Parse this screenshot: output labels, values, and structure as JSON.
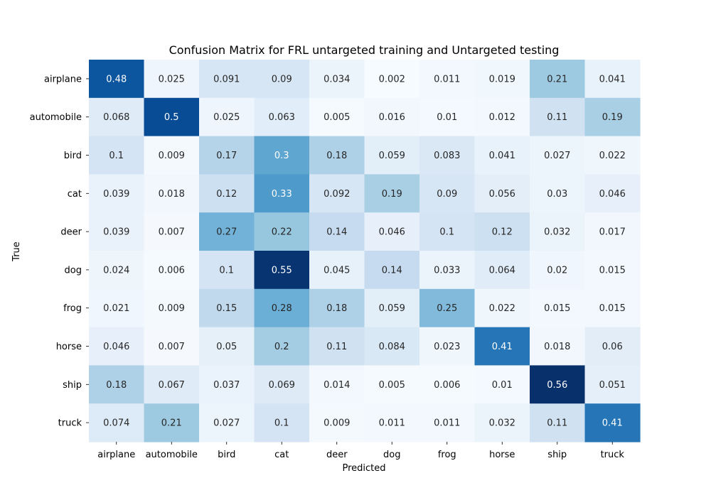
{
  "chart_data": {
    "type": "heatmap",
    "title": "Confusion Matrix for FRL untargeted training and Untargeted testing",
    "xlabel": "Predicted",
    "ylabel": "True",
    "x_categories": [
      "airplane",
      "automobile",
      "bird",
      "cat",
      "deer",
      "dog",
      "frog",
      "horse",
      "ship",
      "truck"
    ],
    "y_categories": [
      "airplane",
      "automobile",
      "bird",
      "cat",
      "deer",
      "dog",
      "frog",
      "horse",
      "ship",
      "truck"
    ],
    "values": [
      [
        "0.48",
        "0.025",
        "0.091",
        "0.09",
        "0.034",
        "0.002",
        "0.011",
        "0.019",
        "0.21",
        "0.041"
      ],
      [
        "0.068",
        "0.5",
        "0.025",
        "0.063",
        "0.005",
        "0.016",
        "0.01",
        "0.012",
        "0.11",
        "0.19"
      ],
      [
        "0.1",
        "0.009",
        "0.17",
        "0.3",
        "0.18",
        "0.059",
        "0.083",
        "0.041",
        "0.027",
        "0.022"
      ],
      [
        "0.039",
        "0.018",
        "0.12",
        "0.33",
        "0.092",
        "0.19",
        "0.09",
        "0.056",
        "0.03",
        "0.046"
      ],
      [
        "0.039",
        "0.007",
        "0.27",
        "0.22",
        "0.14",
        "0.046",
        "0.1",
        "0.12",
        "0.032",
        "0.017"
      ],
      [
        "0.024",
        "0.006",
        "0.1",
        "0.55",
        "0.045",
        "0.14",
        "0.033",
        "0.064",
        "0.02",
        "0.015"
      ],
      [
        "0.021",
        "0.009",
        "0.15",
        "0.28",
        "0.18",
        "0.059",
        "0.25",
        "0.022",
        "0.015",
        "0.015"
      ],
      [
        "0.046",
        "0.007",
        "0.05",
        "0.2",
        "0.11",
        "0.084",
        "0.023",
        "0.41",
        "0.018",
        "0.06"
      ],
      [
        "0.18",
        "0.067",
        "0.037",
        "0.069",
        "0.014",
        "0.005",
        "0.006",
        "0.01",
        "0.56",
        "0.051"
      ],
      [
        "0.074",
        "0.21",
        "0.027",
        "0.1",
        "0.009",
        "0.011",
        "0.011",
        "0.032",
        "0.11",
        "0.41"
      ]
    ],
    "colormap": "Blues",
    "color_range": [
      0,
      0.56
    ],
    "cell_labels": true,
    "colorbar": false,
    "grid": false
  }
}
